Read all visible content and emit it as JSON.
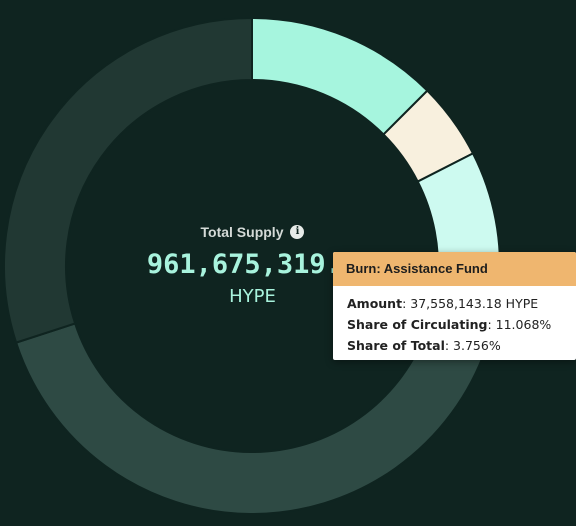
{
  "center": {
    "title": "Total Supply",
    "value": "961,675,319.2",
    "unit": "HYPE"
  },
  "tooltip": {
    "title": "Burn: Assistance Fund",
    "amount_label": "Amount",
    "amount_value": "37,558,143.18 HYPE",
    "circulating_label": "Share of Circulating",
    "circulating_value": "11.068%",
    "total_label": "Share of Total",
    "total_value": "3.756%"
  },
  "chart_data": {
    "type": "pie",
    "variant": "donut",
    "slices": [
      {
        "value": 12.5,
        "color": "#a6f5de"
      },
      {
        "value": 5.0,
        "color": "#f8f0de"
      },
      {
        "value": 9.0,
        "color": "#cdfaf0"
      },
      {
        "value": 3.756,
        "color": "#efb66f"
      },
      {
        "value": 39.744,
        "color": "#2e4a44"
      },
      {
        "value": 30.0,
        "color": "#213833"
      }
    ]
  }
}
